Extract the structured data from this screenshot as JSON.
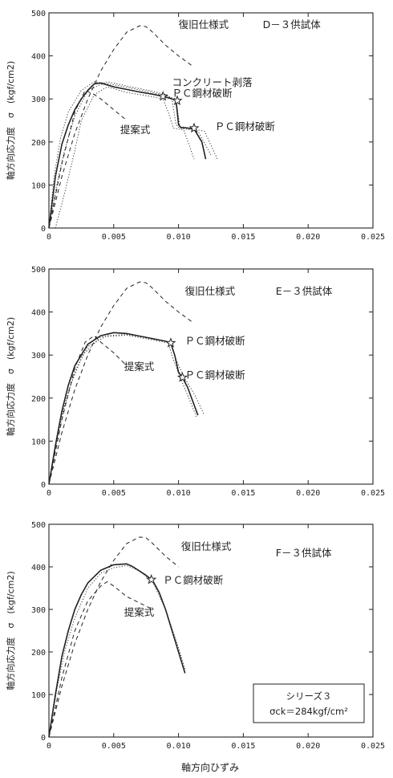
{
  "chart_data": [
    {
      "type": "line",
      "panel_label": "D－３供試体",
      "xlim": [
        0,
        0.025
      ],
      "ylim": [
        0,
        500
      ],
      "xticks": [
        "0",
        "0.005",
        "0.010",
        "0.015",
        "0.020",
        "0.025"
      ],
      "yticks": [
        "0",
        "100",
        "200",
        "300",
        "400",
        "500"
      ],
      "ylabel": "軸方向応力度　σ　(kgf/cm2)",
      "series": [
        {
          "name": "復旧仕様式",
          "style": "dashed",
          "x": [
            0,
            0.001,
            0.002,
            0.003,
            0.004,
            0.005,
            0.006,
            0.007,
            0.0075,
            0.008,
            0.009,
            0.01,
            0.011
          ],
          "y": [
            0,
            120,
            220,
            300,
            365,
            415,
            455,
            470,
            468,
            455,
            425,
            400,
            378
          ]
        },
        {
          "name": "提案式",
          "style": "dashed",
          "x": [
            0,
            0.001,
            0.002,
            0.0028,
            0.0035,
            0.004,
            0.005,
            0.006
          ],
          "y": [
            0,
            150,
            270,
            320,
            310,
            300,
            275,
            250
          ]
        },
        {
          "name": "",
          "style": "solid",
          "x": [
            0,
            0.0005,
            0.001,
            0.0015,
            0.002,
            0.0025,
            0.003,
            0.0035,
            0.004,
            0.005,
            0.006,
            0.007,
            0.008,
            0.0088,
            0.0095,
            0.0098,
            0.0099,
            0.01,
            0.0102,
            0.0105,
            0.0112,
            0.0118,
            0.0121
          ],
          "y": [
            0,
            120,
            195,
            240,
            275,
            300,
            320,
            335,
            337,
            328,
            322,
            316,
            311,
            306,
            300,
            296,
            270,
            240,
            233,
            233,
            230,
            200,
            160
          ]
        },
        {
          "name": "",
          "style": "dotted",
          "x": [
            0,
            0.0006,
            0.0012,
            0.002,
            0.003,
            0.0045,
            0.006,
            0.008,
            0.009,
            0.0095,
            0.0098,
            0.0101,
            0.0115,
            0.0125
          ],
          "y": [
            0,
            100,
            180,
            260,
            320,
            340,
            330,
            318,
            310,
            300,
            240,
            232,
            225,
            170
          ]
        },
        {
          "name": "",
          "style": "dotted",
          "x": [
            0.0005,
            0.0012,
            0.002,
            0.0025,
            0.0035,
            0.0045,
            0.006,
            0.008,
            0.0088,
            0.0092,
            0.0096,
            0.0104,
            0.0112
          ],
          "y": [
            0,
            80,
            180,
            250,
            310,
            328,
            315,
            305,
            300,
            270,
            232,
            228,
            160
          ]
        },
        {
          "name": "",
          "style": "dotted",
          "x": [
            0,
            0.0004,
            0.0009,
            0.0015,
            0.0025,
            0.0035,
            0.005,
            0.0075,
            0.009,
            0.0098,
            0.0101,
            0.012,
            0.013
          ],
          "y": [
            0,
            120,
            210,
            270,
            320,
            340,
            333,
            318,
            308,
            300,
            236,
            225,
            160
          ]
        }
      ],
      "markers": [
        {
          "x": 0.0088,
          "y": 306
        },
        {
          "x": 0.0099,
          "y": 296
        },
        {
          "x": 0.0112,
          "y": 232
        }
      ],
      "annotations": [
        {
          "text": "復旧仕様式",
          "x": 0.01,
          "y": 465
        },
        {
          "text": "D－３供試体",
          "x": 0.0165,
          "y": 465
        },
        {
          "text": "コンクリート剥落",
          "x": 0.0095,
          "y": 330
        },
        {
          "text": "ＰＣ鋼材破断",
          "x": 0.0095,
          "y": 305
        },
        {
          "text": "提案式",
          "x": 0.0055,
          "y": 220
        },
        {
          "text": "ＰＣ鋼材破断",
          "x": 0.0128,
          "y": 228
        }
      ]
    },
    {
      "type": "line",
      "panel_label": "E－３供試体",
      "xlim": [
        0,
        0.025
      ],
      "ylim": [
        0,
        500
      ],
      "xticks": [
        "0",
        "0.005",
        "0.010",
        "0.015",
        "0.020",
        "0.025"
      ],
      "yticks": [
        "0",
        "100",
        "200",
        "300",
        "400",
        "500"
      ],
      "ylabel": "軸方向応力度　σ　(kgf/cm2)",
      "series": [
        {
          "name": "復旧仕様式",
          "style": "dashed",
          "x": [
            0,
            0.001,
            0.002,
            0.003,
            0.004,
            0.005,
            0.006,
            0.007,
            0.0075,
            0.008,
            0.009,
            0.01,
            0.011
          ],
          "y": [
            0,
            120,
            220,
            300,
            365,
            415,
            455,
            470,
            468,
            455,
            425,
            400,
            378
          ]
        },
        {
          "name": "提案式",
          "style": "dashed",
          "x": [
            0,
            0.001,
            0.002,
            0.0028,
            0.0035,
            0.004,
            0.005,
            0.006
          ],
          "y": [
            0,
            150,
            270,
            330,
            345,
            330,
            305,
            275
          ]
        },
        {
          "name": "",
          "style": "solid",
          "x": [
            0,
            0.0005,
            0.001,
            0.0015,
            0.002,
            0.003,
            0.004,
            0.005,
            0.006,
            0.007,
            0.008,
            0.009,
            0.0094,
            0.0097,
            0.01,
            0.0103,
            0.0107,
            0.0115
          ],
          "y": [
            0,
            90,
            170,
            230,
            275,
            325,
            345,
            352,
            350,
            344,
            338,
            332,
            328,
            300,
            260,
            248,
            225,
            160
          ]
        },
        {
          "name": "",
          "style": "dotted",
          "x": [
            0,
            0.0006,
            0.0012,
            0.002,
            0.003,
            0.0045,
            0.006,
            0.008,
            0.0094,
            0.0098,
            0.0104,
            0.0112,
            0.012
          ],
          "y": [
            0,
            100,
            180,
            262,
            320,
            345,
            348,
            338,
            330,
            290,
            250,
            210,
            160
          ]
        },
        {
          "name": "",
          "style": "dotted",
          "x": [
            0,
            0.0004,
            0.0009,
            0.0016,
            0.0026,
            0.004,
            0.006,
            0.008,
            0.0092,
            0.0096,
            0.0101,
            0.0108,
            0.0114
          ],
          "y": [
            0,
            70,
            150,
            225,
            300,
            342,
            346,
            335,
            328,
            290,
            250,
            200,
            155
          ]
        }
      ],
      "markers": [
        {
          "x": 0.0094,
          "y": 328
        },
        {
          "x": 0.0103,
          "y": 248
        }
      ],
      "annotations": [
        {
          "text": "復旧仕様式",
          "x": 0.0105,
          "y": 440
        },
        {
          "text": "E－３供試体",
          "x": 0.0175,
          "y": 440
        },
        {
          "text": "ＰＣ鋼材破断",
          "x": 0.0105,
          "y": 325
        },
        {
          "text": "提案式",
          "x": 0.0058,
          "y": 265
        },
        {
          "text": "ＰＣ鋼材破断",
          "x": 0.0105,
          "y": 245
        }
      ]
    },
    {
      "type": "line",
      "panel_label": "F－３供試体",
      "xlim": [
        0,
        0.025
      ],
      "ylim": [
        0,
        500
      ],
      "xticks": [
        "0",
        "0.005",
        "0.010",
        "0.015",
        "0.020",
        "0.025"
      ],
      "yticks": [
        "0",
        "100",
        "200",
        "300",
        "400",
        "500"
      ],
      "ylabel": "軸方向応力度　σ　(kgf/cm2)",
      "xlabel": "軸方向ひずみ",
      "series": [
        {
          "name": "復旧仕様式",
          "style": "dashed",
          "x": [
            0,
            0.001,
            0.002,
            0.003,
            0.004,
            0.005,
            0.006,
            0.007,
            0.0075,
            0.008,
            0.009,
            0.01
          ],
          "y": [
            0,
            120,
            220,
            300,
            365,
            415,
            455,
            470,
            468,
            455,
            425,
            400
          ]
        },
        {
          "name": "提案式",
          "style": "dashed",
          "x": [
            0,
            0.001,
            0.002,
            0.003,
            0.004,
            0.0045,
            0.005,
            0.006,
            0.007,
            0.008
          ],
          "y": [
            0,
            140,
            250,
            320,
            355,
            365,
            355,
            330,
            315,
            300
          ]
        },
        {
          "name": "",
          "style": "solid",
          "x": [
            0,
            0.0005,
            0.001,
            0.0015,
            0.002,
            0.0025,
            0.003,
            0.004,
            0.005,
            0.006,
            0.0065,
            0.007,
            0.0075,
            0.008,
            0.0085,
            0.009,
            0.0095,
            0.01,
            0.0105
          ],
          "y": [
            0,
            100,
            190,
            250,
            300,
            335,
            362,
            392,
            405,
            407,
            400,
            390,
            380,
            368,
            340,
            300,
            250,
            200,
            150
          ]
        },
        {
          "name": "",
          "style": "dotted",
          "x": [
            0,
            0.0006,
            0.0012,
            0.002,
            0.003,
            0.004,
            0.005,
            0.006,
            0.007,
            0.008,
            0.009,
            0.01,
            0.0105
          ],
          "y": [
            0,
            110,
            200,
            280,
            350,
            385,
            398,
            403,
            390,
            365,
            300,
            210,
            160
          ]
        }
      ],
      "markers": [
        {
          "x": 0.0079,
          "y": 370
        }
      ],
      "annotations": [
        {
          "text": "復旧仕様式",
          "x": 0.0102,
          "y": 440
        },
        {
          "text": "F－３供試体",
          "x": 0.0175,
          "y": 425
        },
        {
          "text": "ＰＣ鋼材破断",
          "x": 0.0088,
          "y": 360
        },
        {
          "text": "提案式",
          "x": 0.0058,
          "y": 285
        }
      ],
      "legend_box": {
        "line1": "シリーズ３",
        "line2": "σck＝284kgf/cm²"
      }
    }
  ],
  "colors": {
    "ink": "#222222",
    "axis": "#1a1a1a",
    "background": "#ffffff"
  }
}
